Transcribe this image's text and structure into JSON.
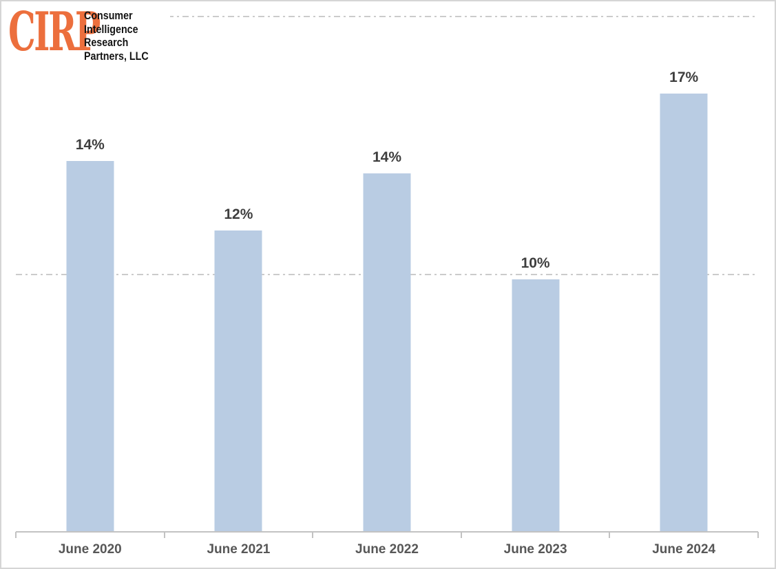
{
  "logo": {
    "acronym": "CIRP",
    "accent_color": "#ec6f3d",
    "lines": [
      "Consumer",
      "Intelligence",
      "Research",
      "Partners, LLC"
    ]
  },
  "chart_data": {
    "type": "bar",
    "title": "",
    "categories": [
      "June 2020",
      "June 2021",
      "June 2022",
      "June 2023",
      "June 2024"
    ],
    "values": [
      14,
      12,
      14,
      10,
      17
    ],
    "value_labels": [
      "14%",
      "12%",
      "14%",
      "10%",
      "17%"
    ],
    "render_values": [
      14.4,
      11.7,
      13.9,
      9.8,
      17.0
    ],
    "ylim": [
      0,
      20
    ],
    "gridlines_at_percent": [
      10,
      20
    ],
    "gridline_style": "dash-dot",
    "grid": "horizontal-only",
    "legend_position": "none",
    "bar_color": "#b9cce3",
    "value_label_color": "#3e3e3e",
    "axis_label_color": "#575757",
    "gridline_color": "#cbcbcb",
    "axis_line_color": "#c2c2c2"
  }
}
